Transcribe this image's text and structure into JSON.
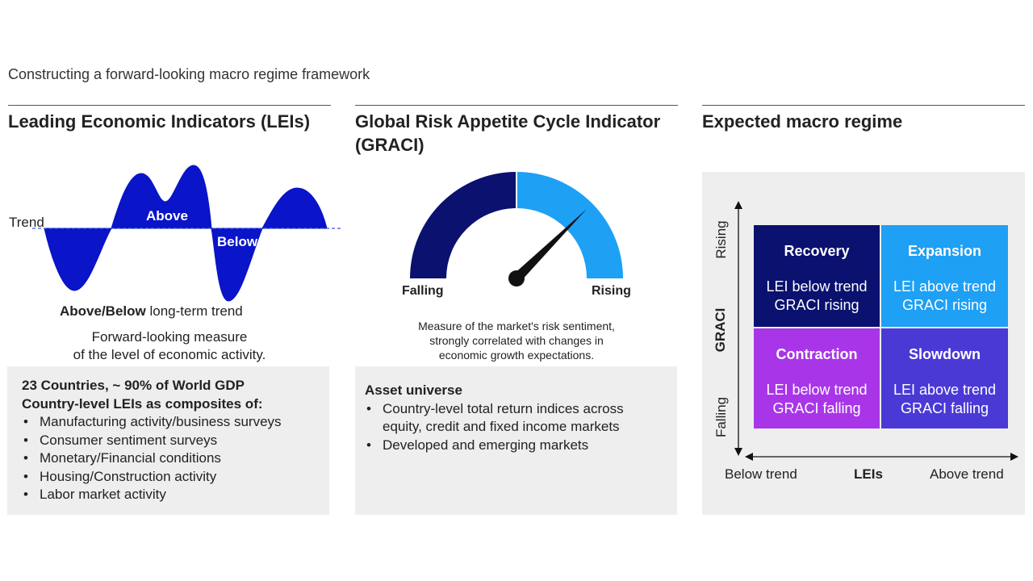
{
  "page_title": "Constructing a forward-looking macro regime framework",
  "columns": {
    "lei": {
      "title": "Leading Economic Indicators (LEIs)",
      "wave": {
        "trend_label": "Trend",
        "above_label": "Above",
        "below_label": "Below",
        "color": "#0a14c8"
      },
      "caption_bold": "Above/Below",
      "caption_rest": " long-term trend",
      "description_line1": "Forward-looking measure",
      "description_line2": "of the level of economic activity.",
      "box": {
        "heading1": "23 Countries, ~ 90% of World GDP",
        "heading2": "Country-level LEIs as composites of:",
        "items": [
          "Manufacturing activity/business surveys",
          "Consumer sentiment surveys",
          "Monetary/Financial conditions",
          "Housing/Construction activity",
          "Labor market activity"
        ]
      }
    },
    "graci": {
      "title_line1": "Global Risk Appetite Cycle Indicator",
      "title_line2": "(GRACI)",
      "gauge": {
        "left_label": "Falling",
        "right_label": "Rising",
        "left_color": "#0b116f",
        "right_color": "#1ea0f5"
      },
      "description_line1": "Measure of the market's risk sentiment,",
      "description_line2": "strongly correlated with changes in",
      "description_line3": "economic growth expectations.",
      "box": {
        "heading": "Asset universe",
        "items": [
          {
            "line1": "Country-level total return indices across",
            "line2": "equity, credit and fixed income markets"
          },
          {
            "line1": "Developed and emerging markets",
            "line2": ""
          }
        ]
      }
    },
    "regime": {
      "title": "Expected macro regime",
      "y_axis": {
        "label": "GRACI",
        "top": "Rising",
        "bottom": "Falling"
      },
      "x_axis": {
        "label": "LEIs",
        "left": "Below trend",
        "right": "Above trend"
      },
      "quadrants": {
        "recovery": {
          "title": "Recovery",
          "line1": "LEI below trend",
          "line2": "GRACI rising",
          "color": "#0b116f"
        },
        "expansion": {
          "title": "Expansion",
          "line1": "LEI above trend",
          "line2": "GRACI rising",
          "color": "#1ea0f5"
        },
        "contraction": {
          "title": "Contraction",
          "line1": "LEI below trend",
          "line2": "GRACI falling",
          "color": "#a836e8"
        },
        "slowdown": {
          "title": "Slowdown",
          "line1": "LEI above trend",
          "line2": "GRACI falling",
          "color": "#4b39d6"
        }
      }
    }
  }
}
